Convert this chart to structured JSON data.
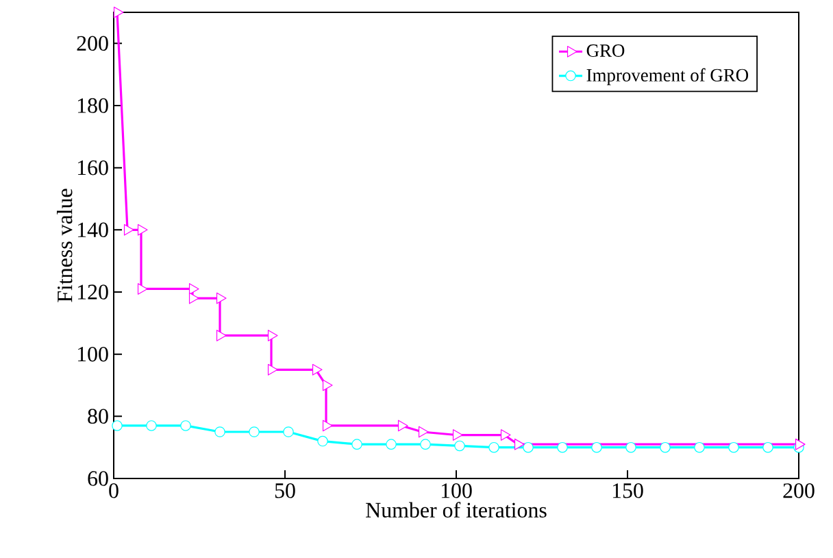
{
  "chart_data": {
    "type": "line",
    "xlabel": "Number of iterations",
    "ylabel": "Fitness value",
    "xlim": [
      0,
      200
    ],
    "ylim": [
      60,
      210
    ],
    "xticks": [
      0,
      50,
      100,
      150,
      200
    ],
    "yticks": [
      60,
      80,
      100,
      120,
      140,
      160,
      180,
      200
    ],
    "grid": false,
    "legend": "top right",
    "line_style": "solid",
    "series": [
      {
        "name": "GRO",
        "color": "#ff00ff",
        "marker": "triangle",
        "x": [
          1,
          4,
          8,
          8,
          23,
          23,
          31,
          31,
          46,
          46,
          59,
          62,
          62,
          84,
          90,
          100,
          114,
          118,
          200
        ],
        "values": [
          210,
          140,
          140,
          121,
          121,
          118,
          118,
          106,
          106,
          95,
          95,
          90,
          77,
          77,
          75,
          74,
          74,
          71,
          71
        ]
      },
      {
        "name": "Improvement of GRO",
        "color": "#00ffff",
        "marker": "circle",
        "x": [
          1,
          11,
          21,
          31,
          41,
          51,
          61,
          71,
          81,
          91,
          101,
          111,
          121,
          131,
          141,
          151,
          161,
          171,
          181,
          191,
          200
        ],
        "values": [
          77,
          77,
          77,
          75,
          75,
          75,
          72,
          71,
          71,
          71,
          70.5,
          70,
          70,
          70,
          70,
          70,
          70,
          70,
          70,
          70,
          70
        ]
      }
    ]
  }
}
